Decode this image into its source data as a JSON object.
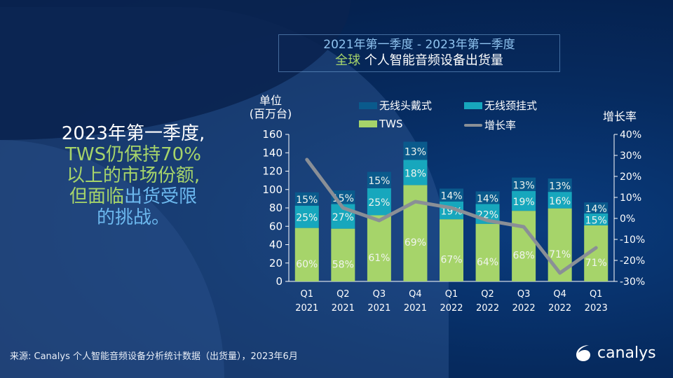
{
  "title": {
    "line1": "2021年第一季度 - 2023年第一季度",
    "line2_highlight": "全球",
    "line2_rest": " 个人智能音频设备出货量"
  },
  "headline": {
    "part1": "2023年第一季度,",
    "part2": "TWS仍保持70%",
    "part3": "以上的市场份额,",
    "part4a": "但面临",
    "part4b": "出货受限",
    "part5": "的挑战。"
  },
  "footer": {
    "source": "来源: Canalys 个人智能音频设备分析统计数据（出货量），2023年6月"
  },
  "logo": {
    "text": "canalys",
    "icon": "canalys-swirl-icon"
  },
  "colors": {
    "headset": "#0a5a8c",
    "neckband": "#17a7bd",
    "tws": "#a6d46a",
    "growth": "#8a8f96",
    "accent_green": "#a6d46a",
    "accent_blue": "#6cb8ee"
  },
  "chart_data": {
    "type": "bar",
    "stacked": true,
    "title": "2021年第一季度 - 2023年第一季度 全球 个人智能音频设备出货量",
    "ylabel": "单位 (百万台)",
    "ylabel_line1": "单位",
    "ylabel_line2": "(百万台)",
    "y2label": "增长率",
    "ylim": [
      0,
      160
    ],
    "y2lim": [
      -30,
      40
    ],
    "yticks": [
      "0",
      "20",
      "40",
      "60",
      "80",
      "100",
      "120",
      "140",
      "160"
    ],
    "y2ticks": [
      "-30%",
      "-20%",
      "-10%",
      "0%",
      "10%",
      "20%",
      "30%",
      "40%"
    ],
    "legend_position": "top",
    "categories": [
      {
        "q": "Q1",
        "y": "2021"
      },
      {
        "q": "Q2",
        "y": "2021"
      },
      {
        "q": "Q3",
        "y": "2021"
      },
      {
        "q": "Q4",
        "y": "2021"
      },
      {
        "q": "Q1",
        "y": "2022"
      },
      {
        "q": "Q2",
        "y": "2022"
      },
      {
        "q": "Q3",
        "y": "2022"
      },
      {
        "q": "Q4",
        "y": "2022"
      },
      {
        "q": "Q1",
        "y": "2023"
      }
    ],
    "totals": [
      97,
      99,
      118,
      152,
      101,
      98,
      113,
      112,
      86
    ],
    "series": [
      {
        "name": "TWS",
        "key": "tws",
        "share_labels": [
          "60%",
          "58%",
          "61%",
          "69%",
          "67%",
          "64%",
          "68%",
          "71%",
          "71%"
        ],
        "shares": [
          60,
          58,
          61,
          69,
          67,
          64,
          68,
          71,
          71
        ]
      },
      {
        "name": "无线颈挂式",
        "key": "neckband",
        "share_labels": [
          "25%",
          "27%",
          "25%",
          "18%",
          "19%",
          "22%",
          "19%",
          "16%",
          "15%"
        ],
        "shares": [
          25,
          27,
          25,
          18,
          19,
          22,
          19,
          16,
          15
        ]
      },
      {
        "name": "无线头戴式",
        "key": "headset",
        "share_labels": [
          "15%",
          "15%",
          "15%",
          "13%",
          "14%",
          "14%",
          "13%",
          "13%",
          "14%"
        ],
        "shares": [
          15,
          15,
          15,
          13,
          14,
          14,
          13,
          13,
          14
        ]
      }
    ],
    "growth": {
      "name": "增长率",
      "values": [
        28,
        5,
        -1,
        8,
        5,
        -1,
        -4,
        -26,
        -14
      ]
    },
    "legend": [
      "无线头戴式",
      "无线颈挂式",
      "TWS",
      "增长率"
    ]
  }
}
